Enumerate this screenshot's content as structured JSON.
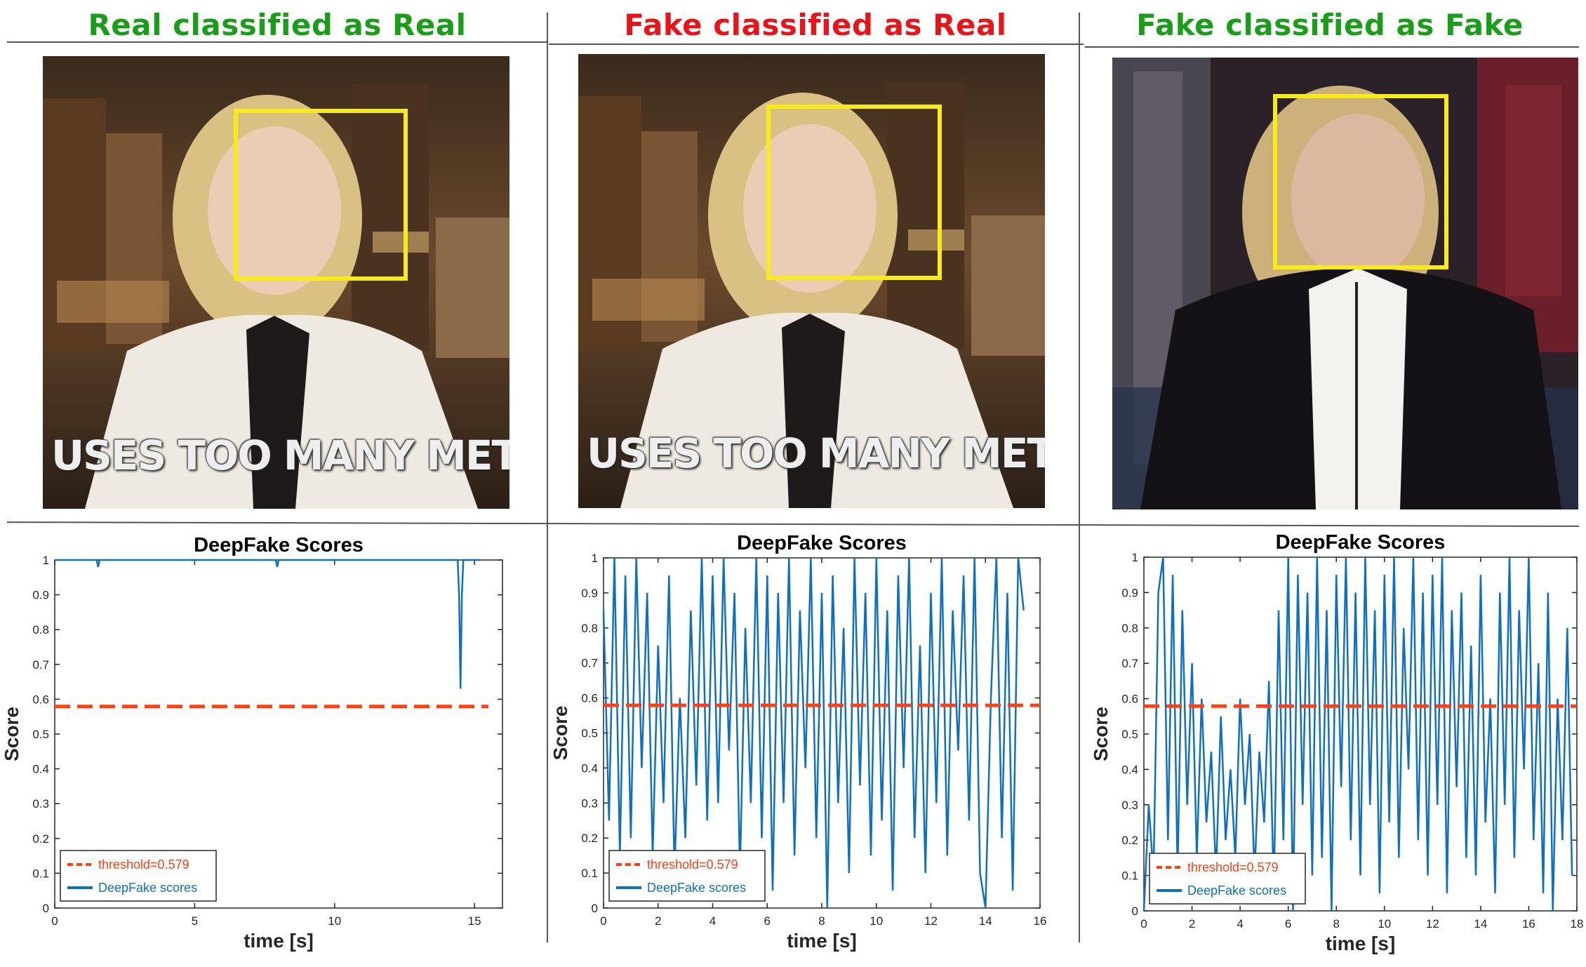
{
  "colors": {
    "correct_title": "#1a9e1a",
    "wrong_title": "#e8141a",
    "threshold": "#ff4013",
    "scores": "#0f6fc0",
    "face_box": "#f7ec1a"
  },
  "panels": [
    {
      "title": "Real classified as Real",
      "title_status": "correct",
      "caption": "USES TOO MANY METAPHO",
      "scene": "studio-white-jacket"
    },
    {
      "title": "Fake classified as Real",
      "title_status": "wrong",
      "caption": "USES TOO MANY METAPHO",
      "scene": "studio-white-jacket"
    },
    {
      "title": "Fake classified as Fake",
      "title_status": "correct",
      "caption": "",
      "scene": "studio-black-jacket"
    }
  ],
  "chart_data": [
    {
      "type": "line",
      "title": "DeepFake Scores",
      "xlabel": "time [s]",
      "ylabel": "Score",
      "xlim": [
        0,
        16
      ],
      "ylim": [
        0,
        1
      ],
      "xticks": [
        0,
        5,
        10,
        15
      ],
      "yticks": [
        0,
        0.1,
        0.2,
        0.3,
        0.4,
        0.5,
        0.6,
        0.7,
        0.8,
        0.9,
        1
      ],
      "legend_position": "bottom-left",
      "series": [
        {
          "name": "threshold=0.579",
          "style": "dashed",
          "x": [
            0,
            15.5
          ],
          "y": [
            0.579,
            0.579
          ]
        },
        {
          "name": "DeepFake scores",
          "style": "solid",
          "x": [
            0,
            1.5,
            1.55,
            1.6,
            7.9,
            7.95,
            8.0,
            14.4,
            14.45,
            14.5,
            14.55,
            14.6,
            14.65,
            15.2
          ],
          "y": [
            1,
            1,
            0.98,
            1,
            1,
            0.98,
            1,
            1,
            0.9,
            0.63,
            0.9,
            1,
            1,
            1
          ]
        }
      ]
    },
    {
      "type": "line",
      "title": "DeepFake Scores",
      "xlabel": "time [s]",
      "ylabel": "Score",
      "xlim": [
        0,
        16
      ],
      "ylim": [
        0,
        1
      ],
      "xticks": [
        0,
        2,
        4,
        6,
        8,
        10,
        12,
        14,
        16
      ],
      "yticks": [
        0,
        0.1,
        0.2,
        0.3,
        0.4,
        0.5,
        0.6,
        0.7,
        0.8,
        0.9,
        1
      ],
      "legend_position": "bottom-left",
      "series": [
        {
          "name": "threshold=0.579",
          "style": "dashed",
          "x": [
            0,
            16
          ],
          "y": [
            0.579,
            0.579
          ]
        },
        {
          "name": "DeepFake scores",
          "style": "solid",
          "x": [
            0,
            0.2,
            0.4,
            0.6,
            0.8,
            1.0,
            1.2,
            1.4,
            1.6,
            1.8,
            2.0,
            2.2,
            2.4,
            2.6,
            2.8,
            3.0,
            3.2,
            3.4,
            3.6,
            3.8,
            4.0,
            4.2,
            4.4,
            4.6,
            4.8,
            5.0,
            5.2,
            5.4,
            5.6,
            5.8,
            6.0,
            6.2,
            6.4,
            6.6,
            6.8,
            7.0,
            7.2,
            7.4,
            7.6,
            7.8,
            8.0,
            8.2,
            8.4,
            8.6,
            8.8,
            9.0,
            9.2,
            9.4,
            9.6,
            9.8,
            10.0,
            10.2,
            10.4,
            10.6,
            10.8,
            11.0,
            11.2,
            11.4,
            11.6,
            11.8,
            12.0,
            12.2,
            12.4,
            12.6,
            12.8,
            13.0,
            13.2,
            13.4,
            13.6,
            13.8,
            14.0,
            14.2,
            14.4,
            14.6,
            14.8,
            15.0,
            15.2,
            15.4
          ],
          "y": [
            0.85,
            0.25,
            1.0,
            0.15,
            0.95,
            0.2,
            1.0,
            0.4,
            0.9,
            0.15,
            0.75,
            0.3,
            0.95,
            0.1,
            0.6,
            0.2,
            0.85,
            0.35,
            1.0,
            0.25,
            0.95,
            0.3,
            1.0,
            0.45,
            0.9,
            0.1,
            0.8,
            0.3,
            1.0,
            0.2,
            0.95,
            0.05,
            0.9,
            0.3,
            1.0,
            0.15,
            0.85,
            0.4,
            1.0,
            0.2,
            0.9,
            0.0,
            0.95,
            0.3,
            0.8,
            0.1,
            1.0,
            0.35,
            0.9,
            0.15,
            1.0,
            0.25,
            0.85,
            0.05,
            0.95,
            0.4,
            1.0,
            0.2,
            0.75,
            0.1,
            0.9,
            0.3,
            1.0,
            0.15,
            0.85,
            0.45,
            0.95,
            0.25,
            1.0,
            0.1,
            0.0,
            0.6,
            1.0,
            0.2,
            0.9,
            0.05,
            1.0,
            0.85
          ]
        }
      ]
    },
    {
      "type": "line",
      "title": "DeepFake Scores",
      "xlabel": "time [s]",
      "ylabel": "Score",
      "xlim": [
        0,
        18
      ],
      "ylim": [
        0,
        1
      ],
      "xticks": [
        0,
        2,
        4,
        6,
        8,
        10,
        12,
        14,
        16,
        18
      ],
      "yticks": [
        0,
        0.1,
        0.2,
        0.3,
        0.4,
        0.5,
        0.6,
        0.7,
        0.8,
        0.9,
        1
      ],
      "legend_position": "bottom-left",
      "series": [
        {
          "name": "threshold=0.579",
          "style": "dashed",
          "x": [
            0,
            18
          ],
          "y": [
            0.579,
            0.579
          ]
        },
        {
          "name": "DeepFake scores",
          "style": "solid",
          "x": [
            0,
            0.2,
            0.4,
            0.6,
            0.8,
            1.0,
            1.2,
            1.4,
            1.6,
            1.8,
            2.0,
            2.2,
            2.4,
            2.6,
            2.8,
            3.0,
            3.2,
            3.4,
            3.6,
            3.8,
            4.0,
            4.2,
            4.4,
            4.6,
            4.8,
            5.0,
            5.2,
            5.4,
            5.6,
            5.8,
            6.0,
            6.2,
            6.4,
            6.6,
            6.8,
            7.0,
            7.2,
            7.4,
            7.6,
            7.8,
            8.0,
            8.2,
            8.4,
            8.6,
            8.8,
            9.0,
            9.2,
            9.4,
            9.6,
            9.8,
            10.0,
            10.2,
            10.4,
            10.6,
            10.8,
            11.0,
            11.2,
            11.4,
            11.6,
            11.8,
            12.0,
            12.2,
            12.4,
            12.6,
            12.8,
            13.0,
            13.2,
            13.4,
            13.6,
            13.8,
            14.0,
            14.2,
            14.4,
            14.6,
            14.8,
            15.0,
            15.2,
            15.4,
            15.6,
            15.8,
            16.0,
            16.2,
            16.4,
            16.6,
            16.8,
            17.0,
            17.2,
            17.4,
            17.6,
            17.8
          ],
          "y": [
            0.0,
            0.3,
            0.1,
            0.9,
            1.0,
            0.2,
            0.95,
            0.1,
            0.85,
            0.3,
            0.7,
            0.15,
            0.6,
            0.25,
            0.45,
            0.1,
            0.55,
            0.2,
            0.4,
            0.15,
            0.6,
            0.3,
            0.5,
            0.1,
            0.45,
            0.25,
            0.65,
            0.05,
            0.85,
            0.2,
            1.0,
            0.0,
            0.95,
            0.3,
            0.9,
            0.1,
            1.0,
            0.15,
            0.85,
            0.0,
            0.95,
            0.35,
            1.0,
            0.2,
            0.9,
            0.1,
            1.0,
            0.3,
            0.85,
            0.05,
            0.95,
            0.25,
            1.0,
            0.15,
            0.8,
            0.4,
            1.0,
            0.2,
            0.9,
            0.1,
            0.95,
            0.3,
            1.0,
            0.05,
            0.85,
            0.35,
            0.9,
            0.15,
            0.75,
            0.1,
            0.95,
            0.25,
            0.6,
            0.05,
            0.9,
            0.3,
            1.0,
            0.15,
            0.85,
            0.4,
            1.0,
            0.2,
            0.7,
            0.05,
            0.9,
            0.0,
            0.6,
            0.2,
            0.8,
            0.1
          ]
        }
      ]
    }
  ]
}
